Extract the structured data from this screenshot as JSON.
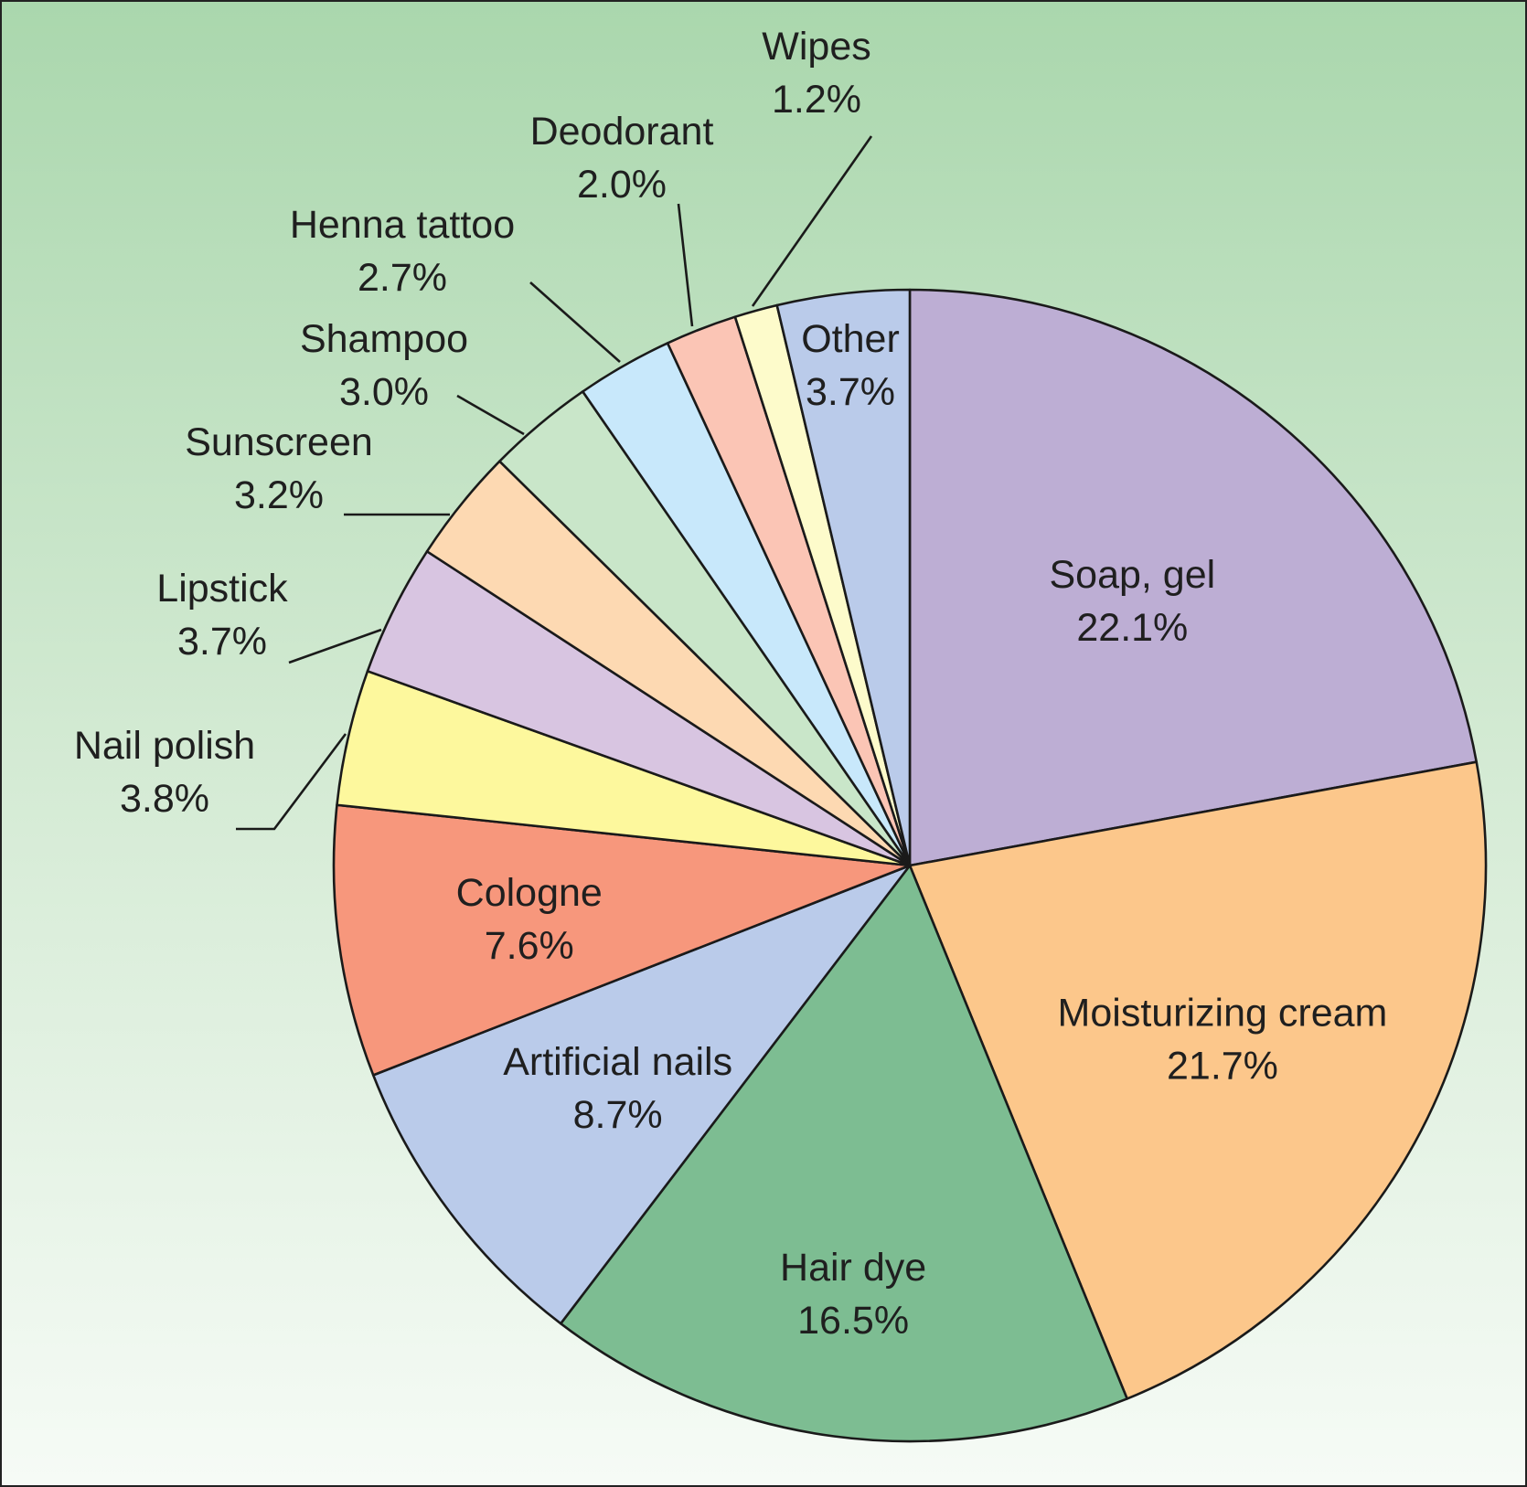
{
  "chart_data": {
    "type": "pie",
    "start_angle_deg": 0,
    "direction": "clockwise",
    "slices": [
      {
        "label": "Soap, gel",
        "value": 22.1,
        "value_label": "22.1%",
        "color": "#bdaed4"
      },
      {
        "label": "Moisturizing cream",
        "value": 21.7,
        "value_label": "21.7%",
        "color": "#fcc78b"
      },
      {
        "label": "Hair dye",
        "value": 16.5,
        "value_label": "16.5%",
        "color": "#7dbd92"
      },
      {
        "label": "Artificial nails",
        "value": 8.7,
        "value_label": "8.7%",
        "color": "#bacbea"
      },
      {
        "label": "Cologne",
        "value": 7.6,
        "value_label": "7.6%",
        "color": "#f7977c"
      },
      {
        "label": "Nail polish",
        "value": 3.8,
        "value_label": "3.8%",
        "color": "#fdf89d"
      },
      {
        "label": "Lipstick",
        "value": 3.7,
        "value_label": "3.7%",
        "color": "#d8c5e1"
      },
      {
        "label": "Sunscreen",
        "value": 3.2,
        "value_label": "3.2%",
        "color": "#fdd9b2"
      },
      {
        "label": "Shampoo",
        "value": 3.0,
        "value_label": "3.0%",
        "color": "#c9e6c9"
      },
      {
        "label": "Henna tattoo",
        "value": 2.7,
        "value_label": "2.7%",
        "color": "#c8e8fb"
      },
      {
        "label": "Deodorant",
        "value": 2.0,
        "value_label": "2.0%",
        "color": "#fbc5b5"
      },
      {
        "label": "Wipes",
        "value": 1.2,
        "value_label": "1.2%",
        "color": "#fdfbcb"
      },
      {
        "label": "Other",
        "value": 3.7,
        "value_label": "3.7%",
        "color": "#bacbea"
      }
    ],
    "legend": "none",
    "labels": "on-slice and external with leader lines"
  }
}
